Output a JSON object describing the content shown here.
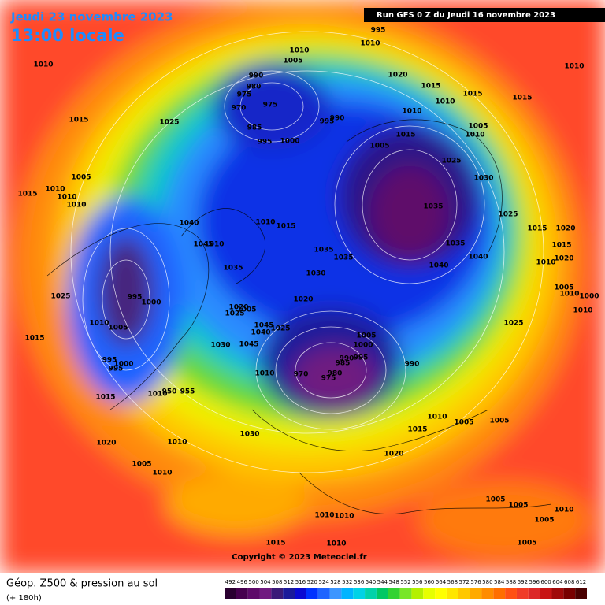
{
  "header": {
    "date": "Jeudi 23 novembre 2023",
    "time": "13:00 locale",
    "run": "Run GFS 0 Z du Jeudi 16 novembre 2023"
  },
  "copyright": "Copyright © 2023 Meteociel.fr",
  "footer": {
    "title": "Géop. Z500 & pression au sol",
    "lead": "(+ 180h)"
  },
  "isobar_labels": [
    1010,
    1010,
    1005,
    995,
    1010,
    990,
    980,
    975,
    970,
    975,
    985,
    995,
    1000,
    995,
    990,
    1020,
    1015,
    1010,
    1015,
    1015,
    1010,
    1010,
    1005,
    1010,
    1005,
    1015,
    1025,
    1030,
    1035,
    1025,
    1035,
    1040,
    1040,
    1015,
    1025,
    1005,
    1015,
    1010,
    1010,
    1010,
    1040,
    1045,
    1010,
    1035,
    1010,
    1015,
    1035,
    1035,
    1030,
    1020,
    1025,
    995,
    1000,
    1010,
    1005,
    1015,
    995,
    1000,
    995,
    1025,
    1020,
    1005,
    1045,
    1040,
    1025,
    1045,
    1030,
    1010,
    970,
    975,
    980,
    985,
    990,
    995,
    1005,
    1000,
    990,
    1025,
    1015,
    1020,
    1015,
    1020,
    1010,
    1005,
    1010,
    1000,
    1010,
    1015,
    1010,
    950,
    955,
    1010,
    1005,
    1005,
    1015,
    1020,
    1030,
    1010,
    1020,
    1005,
    1010,
    1010,
    1010,
    1005,
    1005,
    1010,
    1005,
    1005,
    1015,
    1010
  ],
  "scale": {
    "ticks": [
      492,
      496,
      500,
      504,
      508,
      512,
      516,
      520,
      524,
      528,
      532,
      536,
      540,
      544,
      548,
      552,
      556,
      560,
      564,
      568,
      572,
      576,
      580,
      584,
      588,
      592,
      596,
      600,
      604,
      608,
      612
    ],
    "colors": [
      "#2a0030",
      "#46004e",
      "#5e0a6a",
      "#701a80",
      "#3a1a78",
      "#1a1a9a",
      "#0a0ad2",
      "#0032ff",
      "#1e64ff",
      "#3c96ff",
      "#00b4ff",
      "#00d2e6",
      "#00d2aa",
      "#00c864",
      "#32d232",
      "#78e628",
      "#b4f000",
      "#e6ff00",
      "#ffff00",
      "#ffe600",
      "#ffc800",
      "#ffaa00",
      "#ff8c00",
      "#ff6e00",
      "#ff5014",
      "#f03c28",
      "#dc2828",
      "#c81414",
      "#a00a0a",
      "#780000",
      "#4a0000"
    ]
  }
}
